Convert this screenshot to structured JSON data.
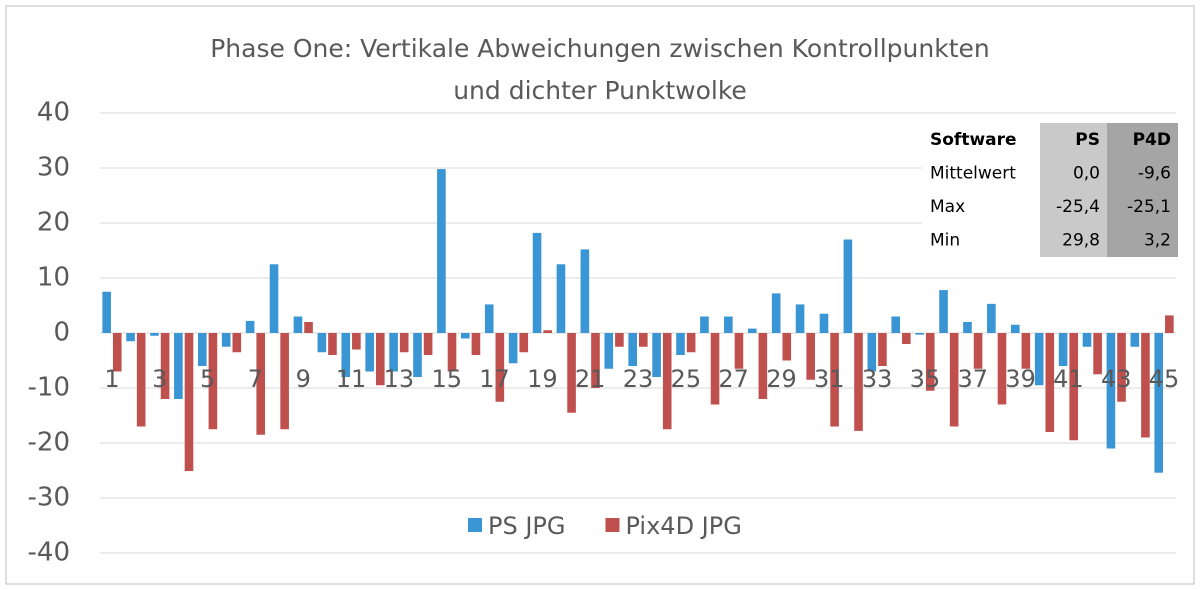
{
  "chart_data": {
    "type": "bar",
    "title": [
      "Phase One: Vertikale Abweichungen zwischen Kontrollpunkten",
      "und dichter Punktwolke"
    ],
    "categories": [
      "1",
      null,
      "3",
      null,
      "5",
      null,
      "7",
      null,
      "9",
      null,
      "11",
      null,
      "13",
      null,
      "15",
      null,
      "17",
      null,
      "19",
      null,
      "21",
      null,
      "23",
      null,
      "25",
      null,
      "27",
      null,
      "29",
      null,
      "31",
      null,
      "33",
      null,
      "35",
      null,
      "37",
      null,
      "39",
      null,
      "41",
      null,
      "43",
      null,
      "45"
    ],
    "series": [
      {
        "name": "PS JPG",
        "color": "#3a95d4",
        "values": [
          7.5,
          -1.5,
          -0.5,
          -12,
          -6,
          -2.5,
          2.2,
          12.5,
          3,
          -3.5,
          -8,
          -7,
          -7,
          -8,
          29.8,
          -1,
          5.2,
          -5.5,
          18.2,
          12.5,
          15.2,
          -6.5,
          -6,
          -8,
          -4,
          3,
          3,
          0.8,
          7.2,
          5.2,
          3.5,
          17,
          -7,
          3,
          -0.3,
          7.8,
          2,
          5.3,
          1.5,
          -9.5,
          -6,
          -2.5,
          -21,
          -2.5,
          -25.4
        ]
      },
      {
        "name": "Pix4D JPG",
        "color": "#c0504d",
        "values": [
          -7,
          -17,
          -12,
          -25.1,
          -17.5,
          -3.5,
          -18.5,
          -17.5,
          2,
          -4,
          -3,
          -9.5,
          -3.5,
          -4,
          -7,
          -4,
          -12.5,
          -3.5,
          0.5,
          -14.5,
          -10,
          -2.5,
          -2.5,
          -17.5,
          -3.5,
          -13,
          -6.5,
          -12,
          -5,
          -8.5,
          -17,
          -17.8,
          -6,
          -2,
          -10.5,
          -17,
          -6.5,
          -13,
          -6.5,
          -18,
          -19.5,
          -7.5,
          -12.5,
          -19,
          3.2
        ]
      }
    ],
    "ylim": [
      -40,
      40
    ],
    "yticks": [
      -40,
      -30,
      -20,
      -10,
      0,
      10,
      20,
      30,
      40
    ],
    "grid": true,
    "legend": "bottom",
    "table": {
      "header": [
        "Software",
        "PS",
        "P4D"
      ],
      "rows": [
        [
          "Mittelwert",
          "0,0",
          "-9,6"
        ],
        [
          "Max",
          "-25,4",
          "-25,1"
        ],
        [
          "Min",
          "29,8",
          "3,2"
        ]
      ]
    }
  }
}
